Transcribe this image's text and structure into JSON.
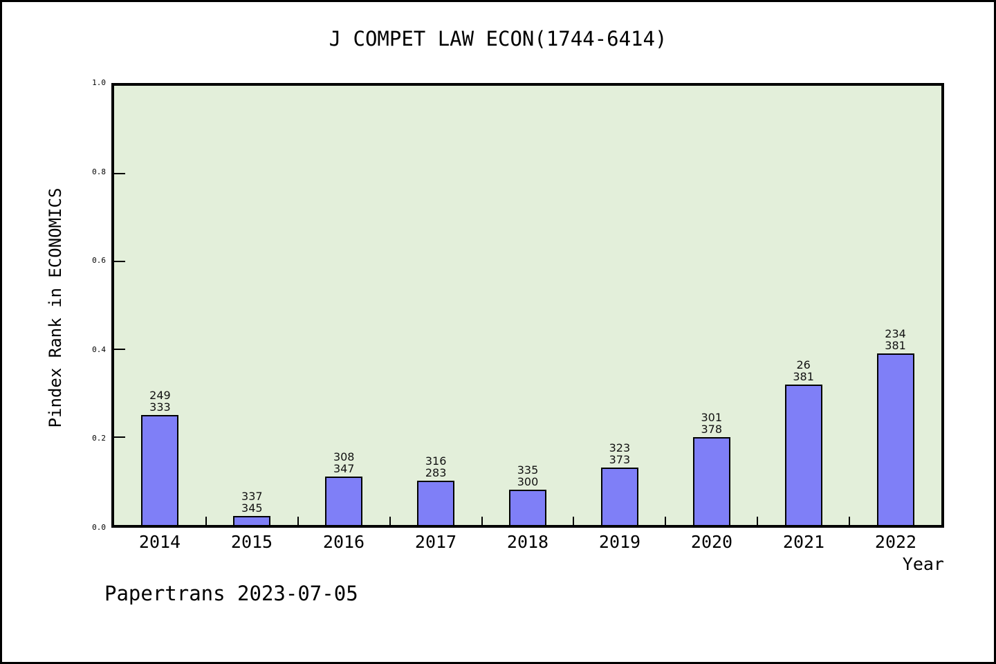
{
  "footer": {
    "text": "Papertrans 2023-07-05"
  },
  "colors": {
    "page_bg": "#FFFFFF",
    "frame": "#000000",
    "plot_bg": "#E3EFDA",
    "bar": "#7F7FF7",
    "bar_border": "#000000"
  },
  "chart_data": {
    "type": "bar",
    "title": "J COMPET LAW ECON(1744-6414)",
    "xlabel": "Year",
    "ylabel": "Pindex Rank in ECONOMICS",
    "categories": [
      "2014",
      "2015",
      "2016",
      "2017",
      "2018",
      "2019",
      "2020",
      "2021",
      "2022"
    ],
    "values": [
      0.25,
      0.02,
      0.11,
      0.1,
      0.08,
      0.13,
      0.2,
      0.32,
      0.39
    ],
    "bar_labels": [
      [
        "249",
        "333"
      ],
      [
        "337",
        "345"
      ],
      [
        "308",
        "347"
      ],
      [
        "316",
        "283"
      ],
      [
        "335",
        "300"
      ],
      [
        "323",
        "373"
      ],
      [
        "301",
        "378"
      ],
      [
        "26",
        "381"
      ],
      [
        "234",
        "381"
      ]
    ],
    "ylim": [
      0.0,
      1.0
    ],
    "yticks": [
      0.0,
      0.2,
      0.4,
      0.6,
      0.8,
      1.0
    ],
    "ytick_labels": [
      "0.0",
      "0.2",
      "0.4",
      "0.6",
      "0.8",
      "1.0"
    ],
    "grid": false,
    "legend_position": "none"
  }
}
